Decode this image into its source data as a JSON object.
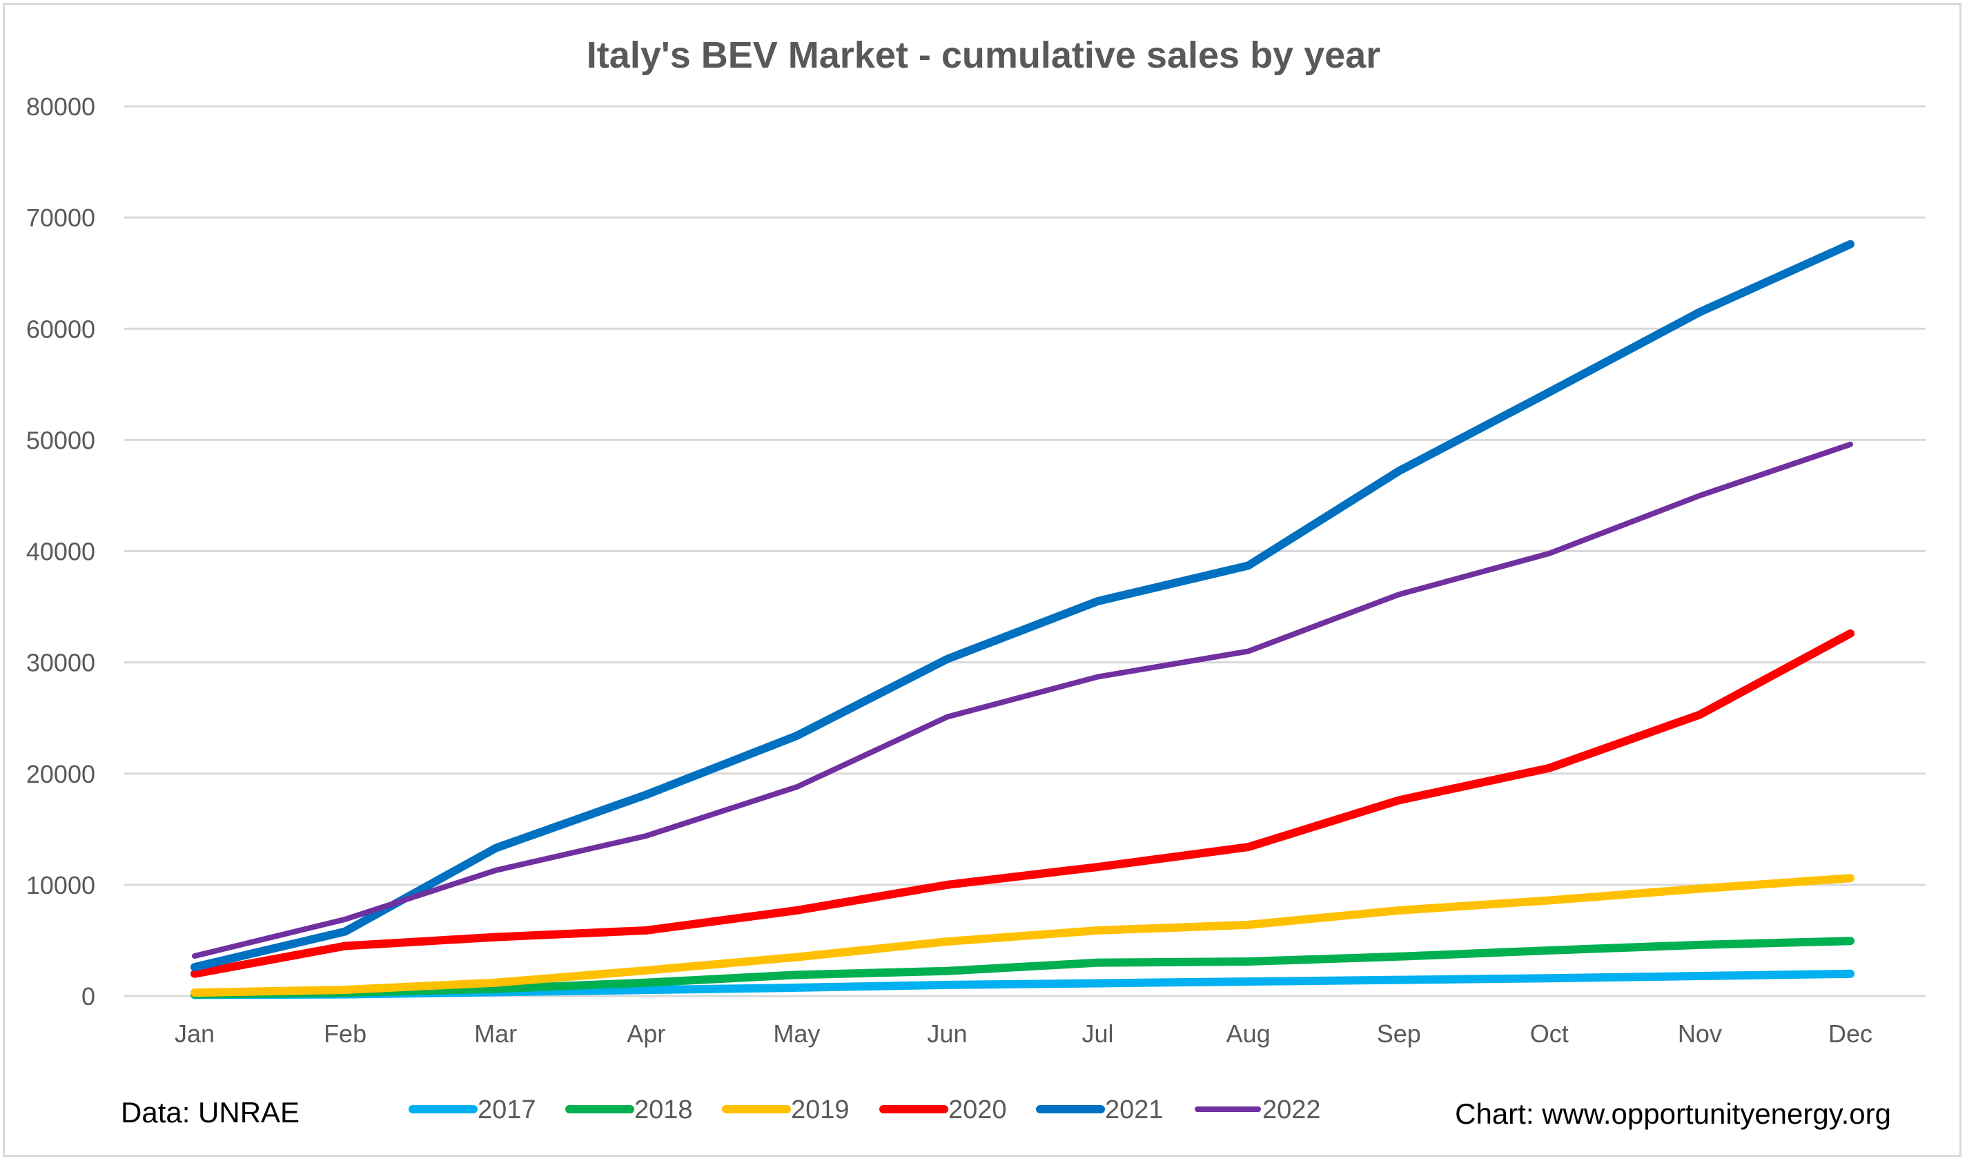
{
  "chart_data": {
    "type": "line",
    "title": "Italy's BEV Market - cumulative sales by year",
    "xlabel": "",
    "ylabel": "",
    "categories": [
      "Jan",
      "Feb",
      "Mar",
      "Apr",
      "May",
      "Jun",
      "Jul",
      "Aug",
      "Sep",
      "Oct",
      "Nov",
      "Dec"
    ],
    "ylim": [
      0,
      80000
    ],
    "yticks": [
      "0",
      "10000",
      "20000",
      "30000",
      "40000",
      "50000",
      "60000",
      "70000",
      "80000"
    ],
    "grid": true,
    "legend_position": "bottom",
    "series": [
      {
        "name": "2017",
        "color": "#00B0F0",
        "values": [
          100,
          150,
          350,
          550,
          750,
          1000,
          1150,
          1300,
          1450,
          1600,
          1800,
          2000
        ]
      },
      {
        "name": "2018",
        "color": "#00B050",
        "values": [
          150,
          300,
          650,
          1200,
          1900,
          2250,
          3000,
          3100,
          3550,
          4100,
          4600,
          4950
        ]
      },
      {
        "name": "2019",
        "color": "#FFC000",
        "values": [
          300,
          560,
          1200,
          2300,
          3500,
          4900,
          5900,
          6400,
          7700,
          8600,
          9650,
          10600
        ]
      },
      {
        "name": "2020",
        "color": "#FF0000",
        "values": [
          2000,
          4500,
          5300,
          5900,
          7700,
          10000,
          11600,
          13400,
          17600,
          20500,
          25300,
          32600
        ]
      },
      {
        "name": "2021",
        "color": "#0070C0",
        "values": [
          2600,
          5800,
          13300,
          18100,
          23400,
          30300,
          35500,
          38700,
          47200,
          54300,
          61500,
          67600
        ]
      },
      {
        "name": "2022",
        "color": "#7030A0",
        "values": [
          3600,
          6900,
          11300,
          14400,
          18800,
          25100,
          28700,
          31000,
          36100,
          39800,
          45000,
          49600
        ]
      }
    ],
    "annotations": {
      "source": "Data: UNRAE",
      "credit": "Chart: www.opportunityenergy.org"
    }
  }
}
